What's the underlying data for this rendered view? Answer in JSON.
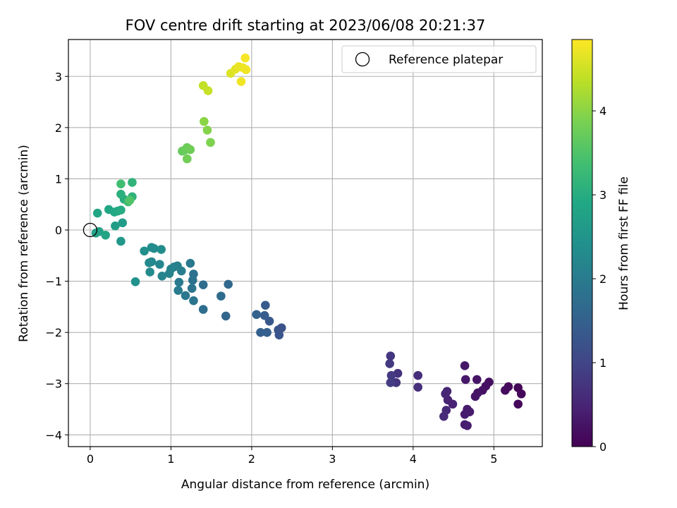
{
  "chart_data": {
    "type": "scatter",
    "title": "FOV centre drift starting at 2023/06/08 20:21:37",
    "xlabel": "Angular distance from reference (arcmin)",
    "ylabel": "Rotation from reference (arcmin)",
    "xlim": [
      -0.27,
      5.6
    ],
    "ylim": [
      -4.23,
      3.72
    ],
    "xticks": [
      0,
      1,
      2,
      3,
      4,
      5
    ],
    "yticks": [
      -4,
      -3,
      -2,
      -1,
      0,
      1,
      2,
      3
    ],
    "grid": true,
    "legend": {
      "position": "top-right",
      "entries": [
        "Reference platepar"
      ]
    },
    "reference_point": {
      "name": "Reference platepar",
      "x": 0,
      "y": 0
    },
    "colorbar": {
      "label": "Hours from first FF file",
      "colormap": "viridis",
      "range": [
        0,
        4.85
      ],
      "ticks": [
        0,
        1,
        2,
        3,
        4
      ]
    },
    "series": [
      {
        "points": [
          {
            "x": 5.3,
            "y": -3.08,
            "c": 0.05
          },
          {
            "x": 5.34,
            "y": -3.2,
            "c": 0.08
          },
          {
            "x": 5.3,
            "y": -3.4,
            "c": 0.1
          },
          {
            "x": 5.18,
            "y": -3.06,
            "c": 0.12
          },
          {
            "x": 5.14,
            "y": -3.13,
            "c": 0.15
          },
          {
            "x": 4.94,
            "y": -2.97,
            "c": 0.18
          },
          {
            "x": 4.9,
            "y": -3.05,
            "c": 0.2
          },
          {
            "x": 4.86,
            "y": -3.13,
            "c": 0.22
          },
          {
            "x": 4.8,
            "y": -3.18,
            "c": 0.25
          },
          {
            "x": 4.77,
            "y": -3.25,
            "c": 0.27
          },
          {
            "x": 4.79,
            "y": -2.92,
            "c": 0.28
          },
          {
            "x": 4.64,
            "y": -2.65,
            "c": 0.3
          },
          {
            "x": 4.65,
            "y": -2.92,
            "c": 0.32
          },
          {
            "x": 4.67,
            "y": -3.5,
            "c": 0.35
          },
          {
            "x": 4.7,
            "y": -3.55,
            "c": 0.37
          },
          {
            "x": 4.64,
            "y": -3.6,
            "c": 0.38
          },
          {
            "x": 4.64,
            "y": -3.8,
            "c": 0.4
          },
          {
            "x": 4.67,
            "y": -3.82,
            "c": 0.42
          },
          {
            "x": 4.49,
            "y": -3.4,
            "c": 0.45
          },
          {
            "x": 4.43,
            "y": -3.32,
            "c": 0.47
          },
          {
            "x": 4.4,
            "y": -3.2,
            "c": 0.5
          },
          {
            "x": 4.42,
            "y": -3.15,
            "c": 0.52
          },
          {
            "x": 4.41,
            "y": -3.52,
            "c": 0.55
          },
          {
            "x": 4.38,
            "y": -3.64,
            "c": 0.57
          },
          {
            "x": 4.06,
            "y": -2.84,
            "c": 0.62
          },
          {
            "x": 4.06,
            "y": -3.07,
            "c": 0.65
          },
          {
            "x": 3.81,
            "y": -2.8,
            "c": 0.7
          },
          {
            "x": 3.79,
            "y": -2.98,
            "c": 0.73
          },
          {
            "x": 3.72,
            "y": -2.46,
            "c": 0.78
          },
          {
            "x": 3.71,
            "y": -2.61,
            "c": 0.8
          },
          {
            "x": 3.73,
            "y": -2.84,
            "c": 0.82
          },
          {
            "x": 3.72,
            "y": -2.98,
            "c": 0.85
          },
          {
            "x": 2.37,
            "y": -1.91,
            "c": 1.2
          },
          {
            "x": 2.33,
            "y": -1.95,
            "c": 1.25
          },
          {
            "x": 2.34,
            "y": -2.05,
            "c": 1.28
          },
          {
            "x": 2.22,
            "y": -1.78,
            "c": 1.33
          },
          {
            "x": 2.17,
            "y": -1.47,
            "c": 1.38
          },
          {
            "x": 2.16,
            "y": -1.67,
            "c": 1.42
          },
          {
            "x": 2.19,
            "y": -2.0,
            "c": 1.45
          },
          {
            "x": 2.11,
            "y": -2.0,
            "c": 1.48
          },
          {
            "x": 2.06,
            "y": -1.65,
            "c": 1.52
          },
          {
            "x": 1.68,
            "y": -1.68,
            "c": 1.6
          },
          {
            "x": 1.71,
            "y": -1.06,
            "c": 1.65
          },
          {
            "x": 1.4,
            "y": -1.07,
            "c": 1.72
          },
          {
            "x": 1.4,
            "y": -1.55,
            "c": 1.75
          },
          {
            "x": 1.62,
            "y": -1.29,
            "c": 1.7
          },
          {
            "x": 1.28,
            "y": -0.86,
            "c": 1.8
          },
          {
            "x": 1.27,
            "y": -0.98,
            "c": 1.83
          },
          {
            "x": 1.26,
            "y": -1.14,
            "c": 1.86
          },
          {
            "x": 1.28,
            "y": -1.38,
            "c": 1.88
          },
          {
            "x": 1.18,
            "y": -1.28,
            "c": 1.92
          },
          {
            "x": 1.24,
            "y": -0.65,
            "c": 1.95
          },
          {
            "x": 1.1,
            "y": -1.02,
            "c": 1.98
          },
          {
            "x": 1.09,
            "y": -1.18,
            "c": 2.02
          },
          {
            "x": 1.13,
            "y": -0.8,
            "c": 2.05
          },
          {
            "x": 1.08,
            "y": -0.7,
            "c": 2.08
          },
          {
            "x": 1.04,
            "y": -0.72,
            "c": 2.1
          },
          {
            "x": 1.0,
            "y": -0.76,
            "c": 2.13
          },
          {
            "x": 0.98,
            "y": -0.85,
            "c": 2.16
          },
          {
            "x": 0.89,
            "y": -0.9,
            "c": 2.2
          },
          {
            "x": 0.86,
            "y": -0.67,
            "c": 2.23
          },
          {
            "x": 0.76,
            "y": -0.62,
            "c": 2.26
          },
          {
            "x": 0.73,
            "y": -0.64,
            "c": 2.28
          },
          {
            "x": 0.74,
            "y": -0.82,
            "c": 2.3
          },
          {
            "x": 0.76,
            "y": -0.34,
            "c": 2.33
          },
          {
            "x": 0.79,
            "y": -0.36,
            "c": 2.35
          },
          {
            "x": 0.88,
            "y": -0.38,
            "c": 2.37
          },
          {
            "x": 0.67,
            "y": -0.41,
            "c": 2.4
          },
          {
            "x": 0.56,
            "y": -1.01,
            "c": 2.45
          },
          {
            "x": 0.38,
            "y": -0.22,
            "c": 2.55
          },
          {
            "x": 0.4,
            "y": 0.14,
            "c": 2.65
          },
          {
            "x": 0.31,
            "y": 0.08,
            "c": 2.7
          },
          {
            "x": 0.07,
            "y": -0.06,
            "c": 2.75
          },
          {
            "x": 0.11,
            "y": -0.03,
            "c": 2.78
          },
          {
            "x": 0.19,
            "y": -0.1,
            "c": 2.82
          },
          {
            "x": 0.09,
            "y": 0.33,
            "c": 2.85
          },
          {
            "x": 0.23,
            "y": 0.4,
            "c": 2.88
          },
          {
            "x": 0.3,
            "y": 0.35,
            "c": 2.91
          },
          {
            "x": 0.34,
            "y": 0.37,
            "c": 2.94
          },
          {
            "x": 0.38,
            "y": 0.39,
            "c": 2.97
          },
          {
            "x": 0.42,
            "y": 0.6,
            "c": 3.0
          },
          {
            "x": 0.38,
            "y": 0.7,
            "c": 3.05
          },
          {
            "x": 0.52,
            "y": 0.65,
            "c": 3.1
          },
          {
            "x": 0.52,
            "y": 0.93,
            "c": 3.15
          },
          {
            "x": 0.47,
            "y": 0.55,
            "c": 3.3
          },
          {
            "x": 0.38,
            "y": 0.9,
            "c": 3.35
          },
          {
            "x": 0.49,
            "y": 0.58,
            "c": 3.5
          },
          {
            "x": 1.14,
            "y": 1.54,
            "c": 3.7
          },
          {
            "x": 1.17,
            "y": 1.56,
            "c": 3.72
          },
          {
            "x": 1.2,
            "y": 1.61,
            "c": 3.75
          },
          {
            "x": 1.24,
            "y": 1.57,
            "c": 3.78
          },
          {
            "x": 1.2,
            "y": 1.39,
            "c": 3.8
          },
          {
            "x": 1.49,
            "y": 1.71,
            "c": 3.9
          },
          {
            "x": 1.45,
            "y": 1.95,
            "c": 3.95
          },
          {
            "x": 1.41,
            "y": 2.12,
            "c": 4.0
          },
          {
            "x": 1.4,
            "y": 2.82,
            "c": 4.4
          },
          {
            "x": 1.46,
            "y": 2.72,
            "c": 4.45
          },
          {
            "x": 1.74,
            "y": 3.06,
            "c": 4.6
          },
          {
            "x": 1.8,
            "y": 3.14,
            "c": 4.65
          },
          {
            "x": 1.84,
            "y": 3.19,
            "c": 4.7
          },
          {
            "x": 1.89,
            "y": 3.17,
            "c": 4.72
          },
          {
            "x": 1.93,
            "y": 3.13,
            "c": 4.75
          },
          {
            "x": 1.92,
            "y": 3.36,
            "c": 4.8
          },
          {
            "x": 1.87,
            "y": 2.9,
            "c": 4.75
          }
        ]
      }
    ]
  }
}
